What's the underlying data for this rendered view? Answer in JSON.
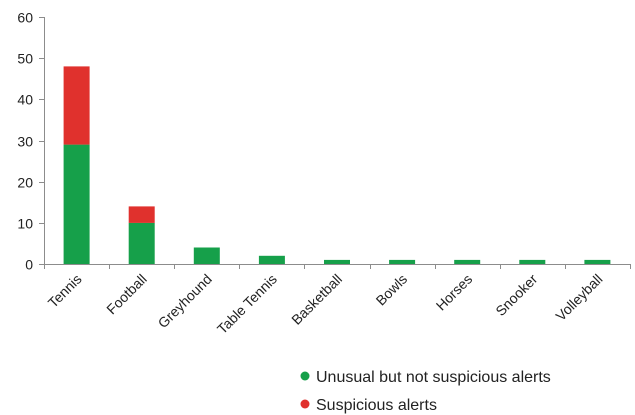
{
  "chart_data": {
    "type": "bar",
    "stacked": true,
    "title": "",
    "xlabel": "",
    "ylabel": "",
    "categories": [
      "Tennis",
      "Football",
      "Greyhound",
      "Table Tennis",
      "Basketball",
      "Bowls",
      "Horses",
      "Snooker",
      "Volleyball"
    ],
    "series": [
      {
        "name": "Unusual but not suspicious alerts",
        "color": "#16a04a",
        "values": [
          29,
          10,
          4,
          2,
          1,
          1,
          1,
          1,
          1
        ]
      },
      {
        "name": "Suspicious alerts",
        "color": "#e0312d",
        "values": [
          19,
          4,
          0,
          0,
          0,
          0,
          0,
          0,
          0
        ]
      }
    ],
    "ylim": [
      0,
      60
    ],
    "yticks": [
      0,
      10,
      20,
      30,
      40,
      50,
      60
    ],
    "grid": false,
    "legend_position": "bottom-right"
  }
}
